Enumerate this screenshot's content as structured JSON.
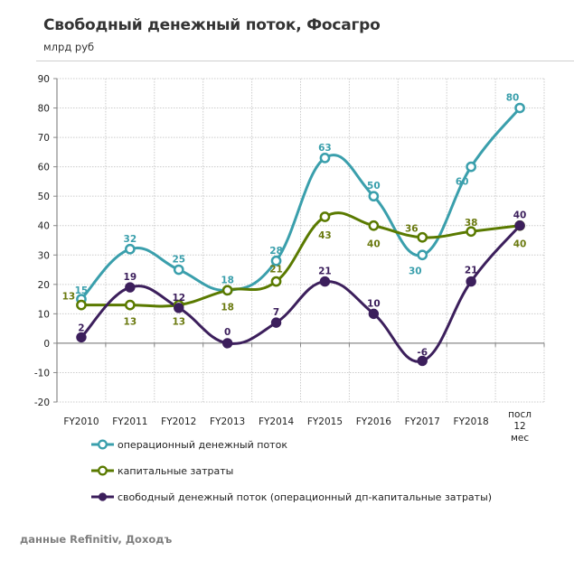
{
  "header": {
    "title": "Свободный денежный поток, Фосагро",
    "subtitle": "млрд руб"
  },
  "footer": {
    "source": "данные Refinitiv, Доходъ"
  },
  "chart_data": {
    "type": "line",
    "title": "Свободный денежный поток, Фосагро",
    "ylabel": "млрд руб",
    "xlabel": "",
    "categories": [
      "FY2010",
      "FY2011",
      "FY2012",
      "FY2013",
      "FY2014",
      "FY2015",
      "FY2016",
      "FY2017",
      "FY2018",
      "посл 12 мес"
    ],
    "ylim": [
      -20,
      90
    ],
    "yticks": [
      90,
      80,
      70,
      60,
      50,
      40,
      30,
      20,
      10,
      0,
      -10,
      -20
    ],
    "grid": true,
    "smooth": true,
    "legend_position": "bottom-left",
    "series": [
      {
        "name": "операционный денежный поток",
        "values": [
          15,
          32,
          25,
          18,
          28,
          63,
          50,
          30,
          60,
          80
        ],
        "color": "#3a9fac",
        "marker": "hollow-circle"
      },
      {
        "name": "капитальные затраты",
        "values": [
          13,
          13,
          13,
          18,
          21,
          43,
          40,
          36,
          38,
          40
        ],
        "color": "#5a7a00",
        "marker": "hollow-circle"
      },
      {
        "name": "свободный денежный поток (операционный дп-капитальные  затраты)",
        "values": [
          2,
          19,
          12,
          0,
          7,
          21,
          10,
          -6,
          21,
          40
        ],
        "color": "#3c1f5c",
        "marker": "filled-circle"
      }
    ],
    "data_labels": [
      [
        "15",
        "32",
        "25",
        "18",
        "28",
        "63",
        "50",
        "30",
        "60",
        "80"
      ],
      [
        "13",
        "13",
        "13",
        "18",
        "21",
        "43",
        "40",
        "36",
        "38",
        "40"
      ],
      [
        "2",
        "19",
        "12",
        "0",
        "7",
        "21",
        "10",
        "-6",
        "21",
        "40"
      ]
    ]
  }
}
